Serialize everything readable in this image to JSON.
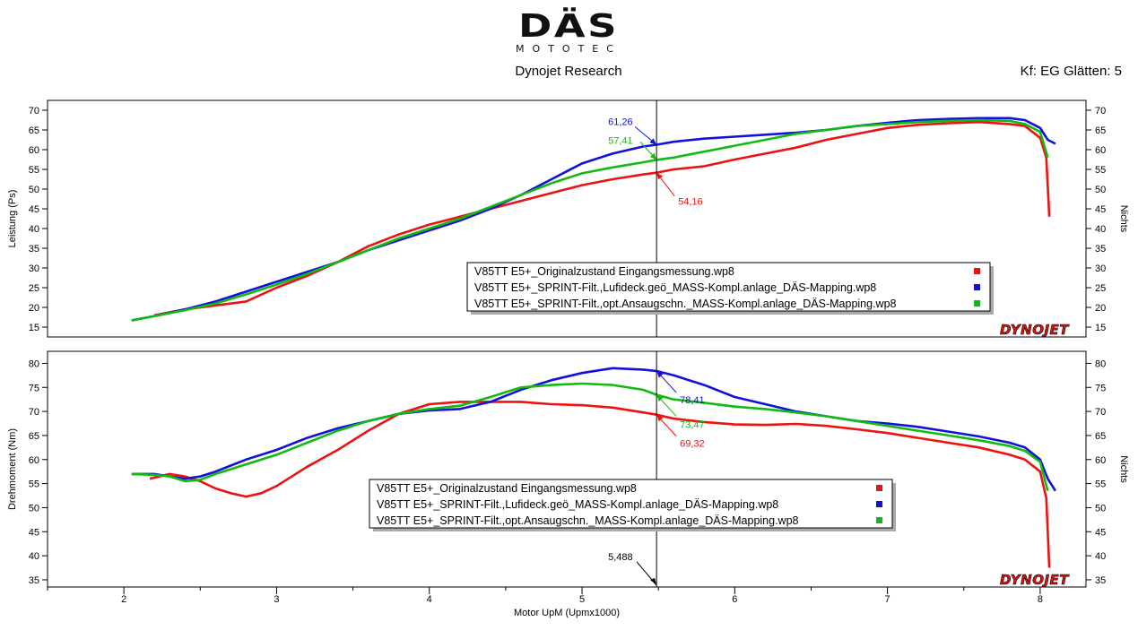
{
  "header": {
    "logo_text": "DÄS",
    "logo_subtext": "MOTOTEC",
    "subtitle": "Dynojet Research",
    "smoothing": "Kf: EG Glätten: 5"
  },
  "colors": {
    "series_red": "#ee1111",
    "series_blue": "#1111dd",
    "series_green": "#11bb11",
    "frame": "#000000",
    "dynojet_red": "#dd1111"
  },
  "chart_data": [
    {
      "type": "line",
      "ylabel": "Leistung (Ps)",
      "ylabel_right": "Nichts",
      "ylim": [
        12.5,
        72.5
      ],
      "yticks": [
        15,
        20,
        25,
        30,
        35,
        40,
        45,
        50,
        55,
        60,
        65,
        70
      ],
      "xlim": [
        1.5,
        8.3
      ],
      "grid": false,
      "legend_position": "center-right",
      "watermark": "DYNOJET",
      "cursor_x": 5.488,
      "series": [
        {
          "name": "V85TT E5+_Originalzustand Eingangsmessung.wp8",
          "color": "#ee1111",
          "x": [
            2.2,
            2.4,
            2.6,
            2.8,
            3.0,
            3.2,
            3.4,
            3.6,
            3.8,
            4.0,
            4.2,
            4.4,
            4.6,
            4.8,
            5.0,
            5.2,
            5.4,
            5.488,
            5.6,
            5.8,
            6.0,
            6.2,
            6.4,
            6.6,
            6.8,
            7.0,
            7.2,
            7.4,
            7.6,
            7.8,
            7.9,
            8.0,
            8.04,
            8.06
          ],
          "y": [
            18.0,
            19.5,
            20.5,
            21.5,
            25.0,
            28.0,
            31.5,
            35.5,
            38.5,
            41.0,
            43.0,
            45.0,
            47.0,
            49.0,
            51.0,
            52.5,
            53.7,
            54.16,
            55.0,
            55.8,
            57.5,
            59.0,
            60.5,
            62.5,
            64.0,
            65.5,
            66.3,
            66.7,
            67.0,
            66.5,
            66.0,
            63.0,
            58.0,
            43.0
          ]
        },
        {
          "name": "V85TT E5+_SPRINT-Filt.,Lufideck.geö_MASS-Kompl.anlage_DÄS-Mapping.wp8",
          "color": "#1111dd",
          "x": [
            2.05,
            2.2,
            2.4,
            2.6,
            2.8,
            3.0,
            3.2,
            3.4,
            3.6,
            3.8,
            4.0,
            4.2,
            4.4,
            4.6,
            4.8,
            5.0,
            5.2,
            5.4,
            5.488,
            5.6,
            5.8,
            6.0,
            6.2,
            6.4,
            6.6,
            6.8,
            7.0,
            7.2,
            7.4,
            7.6,
            7.8,
            7.9,
            8.0,
            8.05,
            8.1
          ],
          "y": [
            16.7,
            17.8,
            19.5,
            21.5,
            24.0,
            26.5,
            29.0,
            31.5,
            34.5,
            37.0,
            39.5,
            42.0,
            45.0,
            48.5,
            52.5,
            56.5,
            59.0,
            60.8,
            61.26,
            62.0,
            62.8,
            63.3,
            63.8,
            64.3,
            65.0,
            66.0,
            66.8,
            67.5,
            67.8,
            68.0,
            68.0,
            67.5,
            65.5,
            62.5,
            61.5
          ]
        },
        {
          "name": "V85TT E5+_SPRINT-Filt.,opt.Ansaugschn._MASS-Kompl.anlage_DÄS-Mapping.wp8",
          "color": "#11bb11",
          "x": [
            2.05,
            2.2,
            2.4,
            2.6,
            2.8,
            3.0,
            3.2,
            3.4,
            3.6,
            3.8,
            4.0,
            4.2,
            4.4,
            4.6,
            4.8,
            5.0,
            5.2,
            5.4,
            5.488,
            5.6,
            5.8,
            6.0,
            6.2,
            6.4,
            6.6,
            6.8,
            7.0,
            7.2,
            7.4,
            7.6,
            7.8,
            7.9,
            8.0,
            8.05
          ],
          "y": [
            16.7,
            17.8,
            19.3,
            21.0,
            23.3,
            25.8,
            28.5,
            31.5,
            34.5,
            37.5,
            40.0,
            42.5,
            45.5,
            48.5,
            51.5,
            54.0,
            55.5,
            56.8,
            57.41,
            58.0,
            59.5,
            61.0,
            62.5,
            64.0,
            65.0,
            66.0,
            66.5,
            67.0,
            67.3,
            67.5,
            67.3,
            66.5,
            64.5,
            58.0
          ]
        }
      ],
      "annotations": [
        {
          "label": "61,26",
          "x": 5.488,
          "y": 61.26,
          "color": "#1111dd"
        },
        {
          "label": "57,41",
          "x": 5.488,
          "y": 57.41,
          "color": "#11bb11"
        },
        {
          "label": "54,16",
          "x": 5.488,
          "y": 54.16,
          "color": "#ee1111"
        }
      ]
    },
    {
      "type": "line",
      "ylabel": "Drehmoment (Nm)",
      "ylabel_right": "Nichts",
      "xlabel": "Motor UpM (Upmx1000)",
      "ylim": [
        33.5,
        82.5
      ],
      "yticks": [
        35,
        40,
        45,
        50,
        55,
        60,
        65,
        70,
        75,
        80
      ],
      "xlim": [
        1.5,
        8.3
      ],
      "xticks": [
        2,
        3,
        4,
        5,
        6,
        7,
        8
      ],
      "grid": false,
      "legend_position": "bottom-center",
      "watermark": "DYNOJET",
      "cursor_x": 5.488,
      "cursor_label": "5,488",
      "series": [
        {
          "name": "V85TT E5+_Originalzustand Eingangsmessung.wp8",
          "color": "#ee1111",
          "x": [
            2.17,
            2.3,
            2.4,
            2.5,
            2.6,
            2.7,
            2.8,
            2.9,
            3.0,
            3.2,
            3.4,
            3.6,
            3.8,
            4.0,
            4.2,
            4.4,
            4.6,
            4.8,
            5.0,
            5.2,
            5.4,
            5.488,
            5.6,
            5.8,
            6.0,
            6.2,
            6.4,
            6.6,
            6.8,
            7.0,
            7.2,
            7.4,
            7.6,
            7.8,
            7.9,
            8.0,
            8.04,
            8.06
          ],
          "y": [
            56.0,
            57.0,
            56.5,
            55.5,
            54.0,
            53.0,
            52.3,
            53.0,
            54.5,
            58.5,
            62.0,
            66.0,
            69.5,
            71.5,
            72.0,
            72.0,
            72.0,
            71.5,
            71.3,
            70.8,
            69.8,
            69.32,
            68.5,
            67.8,
            67.3,
            67.2,
            67.4,
            67.0,
            66.3,
            65.5,
            64.5,
            63.5,
            62.5,
            61.0,
            60.0,
            57.5,
            52.0,
            37.5
          ]
        },
        {
          "name": "V85TT E5+_SPRINT-Filt.,Lufideck.geö_MASS-Kompl.anlage_DÄS-Mapping.wp8",
          "color": "#1111dd",
          "x": [
            2.05,
            2.2,
            2.3,
            2.4,
            2.5,
            2.6,
            2.8,
            3.0,
            3.2,
            3.4,
            3.6,
            3.8,
            4.0,
            4.2,
            4.4,
            4.6,
            4.8,
            5.0,
            5.2,
            5.4,
            5.488,
            5.6,
            5.8,
            6.0,
            6.2,
            6.4,
            6.6,
            6.8,
            7.0,
            7.2,
            7.4,
            7.6,
            7.8,
            7.9,
            8.0,
            8.05,
            8.1
          ],
          "y": [
            57.0,
            57.0,
            56.5,
            56.0,
            56.5,
            57.5,
            60.0,
            62.0,
            64.5,
            66.5,
            68.0,
            69.5,
            70.2,
            70.5,
            72.0,
            74.5,
            76.5,
            78.0,
            79.0,
            78.7,
            78.41,
            77.5,
            75.5,
            73.0,
            71.5,
            70.0,
            69.0,
            68.0,
            67.5,
            66.8,
            65.8,
            64.8,
            63.5,
            62.5,
            60.0,
            56.0,
            53.5
          ]
        },
        {
          "name": "V85TT E5+_SPRINT-Filt.,opt.Ansaugschn._MASS-Kompl.anlage_DÄS-Mapping.wp8",
          "color": "#11bb11",
          "x": [
            2.05,
            2.2,
            2.3,
            2.4,
            2.5,
            2.6,
            2.8,
            3.0,
            3.2,
            3.4,
            3.6,
            3.8,
            4.0,
            4.2,
            4.4,
            4.6,
            4.8,
            5.0,
            5.2,
            5.4,
            5.488,
            5.6,
            5.8,
            6.0,
            6.2,
            6.4,
            6.6,
            6.8,
            7.0,
            7.2,
            7.4,
            7.6,
            7.8,
            7.9,
            8.0,
            8.05
          ],
          "y": [
            57.0,
            56.8,
            56.5,
            55.5,
            55.8,
            57.0,
            59.0,
            61.0,
            63.5,
            66.0,
            68.0,
            69.5,
            70.5,
            71.2,
            73.0,
            75.0,
            75.5,
            75.8,
            75.5,
            74.5,
            73.47,
            72.5,
            71.8,
            71.0,
            70.5,
            69.8,
            69.0,
            68.0,
            67.0,
            66.0,
            65.0,
            64.0,
            62.8,
            61.8,
            59.5,
            53.5
          ]
        }
      ],
      "annotations": [
        {
          "label": "78,41",
          "x": 5.488,
          "y": 78.41,
          "color": "#1111dd"
        },
        {
          "label": "73,47",
          "x": 5.488,
          "y": 73.47,
          "color": "#11bb11"
        },
        {
          "label": "69,32",
          "x": 5.488,
          "y": 69.32,
          "color": "#ee1111"
        }
      ]
    }
  ]
}
